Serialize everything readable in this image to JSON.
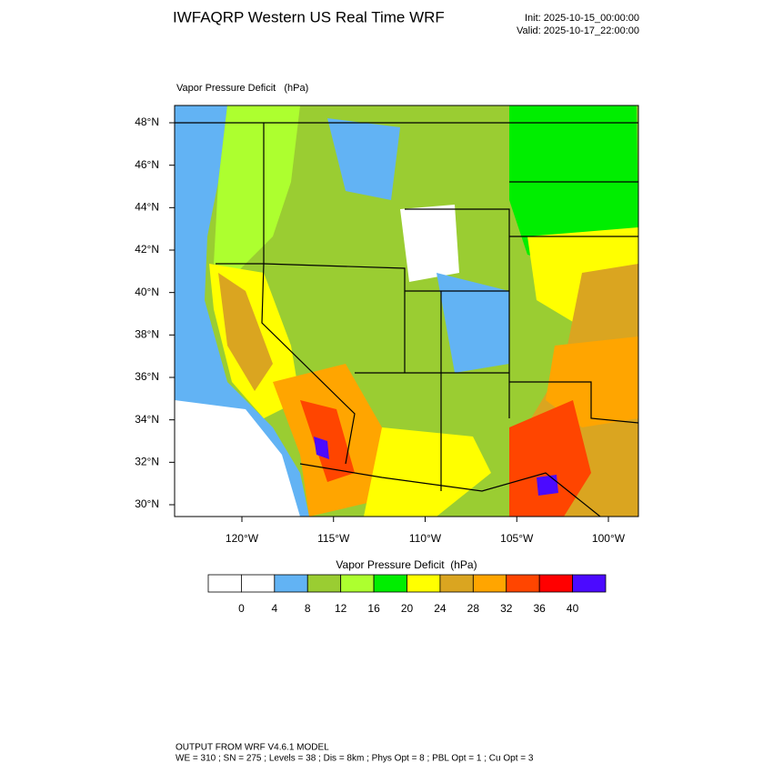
{
  "header": {
    "title": "IWFAQRP Western US Real Time WRF",
    "init": "Init: 2025-10-15_00:00:00",
    "valid": "Valid: 2025-10-17_22:00:00"
  },
  "map": {
    "field_label": "Vapor Pressure Deficit   (hPa)",
    "lat_ticks": [
      {
        "value": 48,
        "label": "48°N"
      },
      {
        "value": 46,
        "label": "46°N"
      },
      {
        "value": 44,
        "label": "44°N"
      },
      {
        "value": 42,
        "label": "42°N"
      },
      {
        "value": 40,
        "label": "40°N"
      },
      {
        "value": 38,
        "label": "38°N"
      },
      {
        "value": 36,
        "label": "36°N"
      },
      {
        "value": 34,
        "label": "34°N"
      },
      {
        "value": 32,
        "label": "32°N"
      },
      {
        "value": 30,
        "label": "30°N"
      }
    ],
    "lon_ticks": [
      {
        "value": -120,
        "label": "120°W"
      },
      {
        "value": -115,
        "label": "115°W"
      },
      {
        "value": -110,
        "label": "110°W"
      },
      {
        "value": -105,
        "label": "105°W"
      },
      {
        "value": -100,
        "label": "100°W"
      }
    ]
  },
  "colorbar": {
    "title": "Vapor Pressure Deficit  (hPa)",
    "colors": [
      "#ffffff",
      "#ffffff",
      "#62b3f4",
      "#9acd32",
      "#adff2f",
      "#00ee00",
      "#ffff00",
      "#daa520",
      "#ffa500",
      "#ff4500",
      "#ff0000",
      "#4b0aff"
    ],
    "levels": [
      0,
      4,
      8,
      12,
      16,
      20,
      24,
      28,
      32,
      36,
      40
    ]
  },
  "footer": {
    "line1": "OUTPUT FROM WRF V4.6.1 MODEL",
    "line2": "WE = 310 ; SN = 275 ; Levels = 38 ; Dis = 8km ; Phys Opt = 8 ; PBL Opt = 1 ; Cu Opt = 3"
  }
}
